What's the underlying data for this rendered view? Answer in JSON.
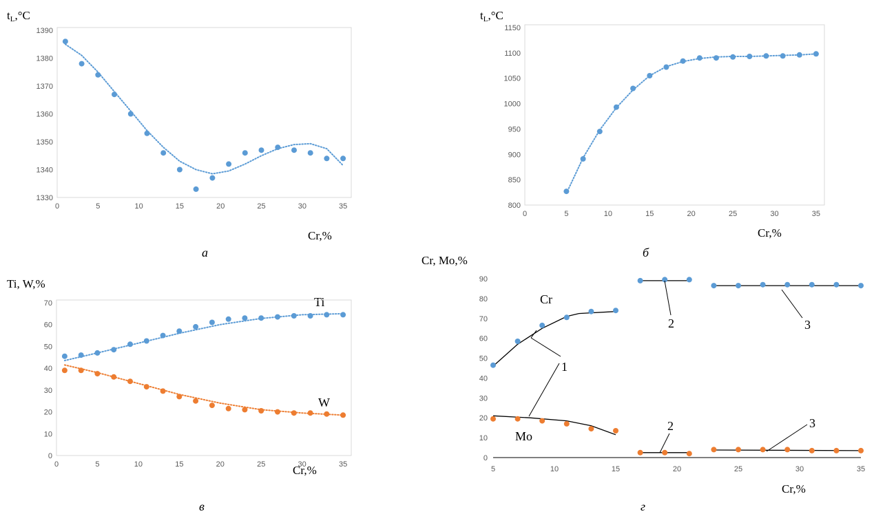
{
  "chart_data": [
    {
      "id": "a",
      "type": "scatter",
      "caption": "а",
      "ylabel": "t",
      "ylabel_sub": "L",
      "ylabel_unit": ",°C",
      "xlabel": "Cr,%",
      "xlim": [
        0,
        36
      ],
      "ylim": [
        1330,
        1390
      ],
      "xticks": [
        0,
        5,
        10,
        15,
        20,
        25,
        30,
        35
      ],
      "yticks": [
        1330,
        1340,
        1350,
        1360,
        1370,
        1380,
        1390
      ],
      "series": [
        {
          "color": "#5B9BD5",
          "trendline": "dotted",
          "x": [
            1,
            3,
            5,
            7,
            9,
            11,
            13,
            15,
            17,
            19,
            21,
            23,
            25,
            27,
            29,
            31,
            33,
            35
          ],
          "y": [
            1386,
            1378,
            1374,
            1367,
            1360,
            1353,
            1346,
            1340,
            1333,
            1337,
            1342,
            1346,
            1347,
            1348,
            1347,
            1346,
            1344,
            1344
          ],
          "trend": [
            [
              1,
              1385
            ],
            [
              3,
              1381
            ],
            [
              5,
              1375
            ],
            [
              7,
              1368
            ],
            [
              9,
              1361
            ],
            [
              11,
              1354
            ],
            [
              13,
              1348
            ],
            [
              15,
              1343
            ],
            [
              17,
              1340
            ],
            [
              19,
              1338.5
            ],
            [
              21,
              1339.5
            ],
            [
              23,
              1342
            ],
            [
              25,
              1345
            ],
            [
              27,
              1347.5
            ],
            [
              29,
              1349
            ],
            [
              31,
              1349.3
            ],
            [
              33,
              1347.5
            ],
            [
              35,
              1341.5
            ]
          ]
        }
      ]
    },
    {
      "id": "b",
      "type": "scatter",
      "caption": "б",
      "ylabel": "t",
      "ylabel_sub": "L",
      "ylabel_unit": ",°C",
      "xlabel": "Cr,%",
      "xlim": [
        0,
        36
      ],
      "ylim": [
        800,
        1150
      ],
      "xticks": [
        0,
        5,
        10,
        15,
        20,
        25,
        30,
        35
      ],
      "yticks": [
        800,
        850,
        900,
        950,
        1000,
        1050,
        1100,
        1150
      ],
      "series": [
        {
          "color": "#5B9BD5",
          "trendline": "dotted",
          "x": [
            5,
            7,
            9,
            11,
            13,
            15,
            17,
            19,
            21,
            23,
            25,
            27,
            29,
            31,
            33,
            35
          ],
          "y": [
            827,
            891,
            945,
            993,
            1030,
            1055,
            1072,
            1084,
            1090,
            1090,
            1092,
            1093,
            1094,
            1094,
            1096,
            1098
          ],
          "trend": [
            [
              5,
              823
            ],
            [
              7,
              893
            ],
            [
              9,
              948
            ],
            [
              11,
              992
            ],
            [
              13,
              1027
            ],
            [
              15,
              1055
            ],
            [
              17,
              1073
            ],
            [
              19,
              1083
            ],
            [
              21,
              1089
            ],
            [
              23,
              1092
            ],
            [
              25,
              1093
            ],
            [
              27,
              1093
            ],
            [
              29,
              1094
            ],
            [
              31,
              1095
            ],
            [
              33,
              1096
            ],
            [
              35,
              1098
            ]
          ]
        }
      ]
    },
    {
      "id": "v",
      "type": "scatter",
      "caption": "в",
      "ylabel": "Ti, W,%",
      "xlabel": "Cr,%",
      "xlim": [
        0,
        36
      ],
      "ylim": [
        0,
        70
      ],
      "xticks": [
        0,
        5,
        10,
        15,
        20,
        25,
        30,
        35
      ],
      "yticks": [
        0,
        10,
        20,
        30,
        40,
        50,
        60,
        70
      ],
      "series": [
        {
          "name": "Ti",
          "color": "#5B9BD5",
          "trendline": "dotted",
          "x": [
            1,
            3,
            5,
            7,
            9,
            11,
            13,
            15,
            17,
            19,
            21,
            23,
            25,
            27,
            29,
            31,
            33,
            35
          ],
          "y": [
            45.5,
            46,
            47,
            48.5,
            51,
            52.5,
            55,
            57,
            59,
            61,
            62.5,
            63,
            63,
            63.5,
            64,
            64,
            64.5,
            64.5
          ],
          "trend": [
            [
              1,
              43.5
            ],
            [
              5,
              47
            ],
            [
              10,
              51.5
            ],
            [
              15,
              56
            ],
            [
              20,
              60
            ],
            [
              25,
              62.8
            ],
            [
              30,
              64.5
            ],
            [
              35,
              65
            ]
          ]
        },
        {
          "name": "W",
          "color": "#ED7D31",
          "trendline": "dotted",
          "x": [
            1,
            3,
            5,
            7,
            9,
            11,
            13,
            15,
            17,
            19,
            21,
            23,
            25,
            27,
            29,
            31,
            33,
            35
          ],
          "y": [
            39,
            39,
            37.5,
            36,
            34,
            31.5,
            29.5,
            27,
            25,
            23,
            21.5,
            21,
            20.5,
            20,
            19.5,
            19.5,
            19,
            18.5
          ],
          "trend": [
            [
              1,
              41.5
            ],
            [
              5,
              38
            ],
            [
              10,
              33
            ],
            [
              15,
              28
            ],
            [
              20,
              24
            ],
            [
              25,
              21
            ],
            [
              30,
              19.5
            ],
            [
              35,
              18.5
            ]
          ]
        }
      ]
    },
    {
      "id": "g",
      "type": "scatter",
      "caption": "г",
      "ylabel": "Cr, Mo,%",
      "xlabel": "Cr,%",
      "xlim": [
        5,
        35
      ],
      "ylim": [
        0,
        90
      ],
      "xticks": [
        5,
        10,
        15,
        20,
        25,
        30,
        35
      ],
      "yticks": [
        0,
        10,
        20,
        30,
        40,
        50,
        60,
        70,
        80,
        90
      ],
      "series": [
        {
          "name": "Cr",
          "color": "#5B9BD5",
          "x": [
            5,
            7,
            9,
            11,
            13,
            15,
            17,
            19,
            21,
            23,
            25,
            27,
            29,
            31,
            33,
            35
          ],
          "y": [
            46.5,
            58.5,
            66.5,
            70.5,
            73.5,
            74,
            89,
            89.5,
            89.5,
            86.5,
            86.5,
            87,
            87,
            87,
            87,
            86.5
          ]
        },
        {
          "name": "Mo",
          "color": "#ED7D31",
          "x": [
            5,
            7,
            9,
            11,
            13,
            15,
            17,
            19,
            21,
            23,
            25,
            27,
            29,
            31,
            33,
            35
          ],
          "y": [
            19.5,
            19.5,
            18.5,
            17,
            14.5,
            13.5,
            2.5,
            2.5,
            2,
            4,
            4,
            4,
            4,
            3.5,
            3.5,
            3.5
          ]
        }
      ],
      "fit_lines": [
        [
          [
            5,
            46
          ],
          [
            7,
            57
          ],
          [
            9,
            65
          ],
          [
            11,
            71
          ],
          [
            12,
            72.5
          ],
          [
            15,
            73.5
          ]
        ],
        [
          [
            17,
            89
          ],
          [
            21,
            89
          ]
        ],
        [
          [
            23,
            86.5
          ],
          [
            35,
            86.5
          ]
        ],
        [
          [
            5,
            21
          ],
          [
            8,
            20
          ],
          [
            11,
            18.5
          ],
          [
            13,
            16
          ],
          [
            15,
            11.5
          ]
        ],
        [
          [
            17,
            2.5
          ],
          [
            21,
            2.5
          ]
        ],
        [
          [
            23,
            3.8
          ],
          [
            35,
            3.5
          ]
        ]
      ],
      "annotations": {
        "cr_label": "Cr",
        "mo_label": "Mo",
        "n1": "1",
        "n2_top": "2",
        "n3_top": "3",
        "n2_bottom": "2",
        "n3_bottom": "3"
      }
    }
  ]
}
